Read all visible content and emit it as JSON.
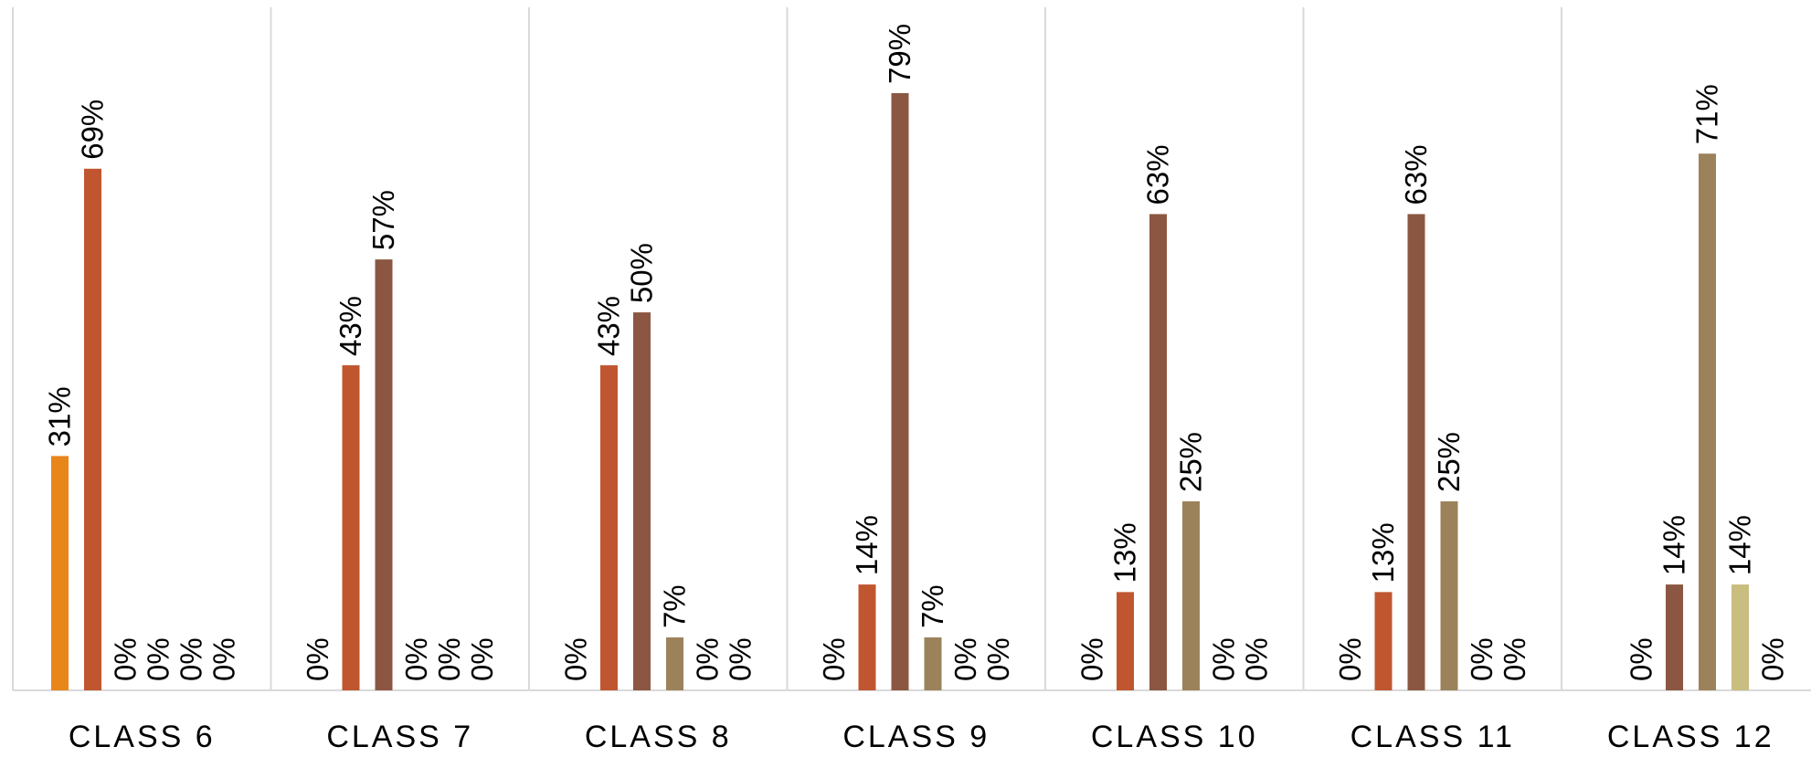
{
  "chart_data": {
    "type": "bar",
    "title": "",
    "xlabel": "",
    "ylabel": "",
    "ylim": [
      0,
      80
    ],
    "grid": "vertical category separators",
    "legend": "none",
    "categories": [
      "CLASS 6",
      "CLASS 7",
      "CLASS 8",
      "CLASS 9",
      "CLASS 10",
      "CLASS 11",
      "CLASS 12"
    ],
    "series": [
      {
        "color": "#E8861A",
        "values": [
          31,
          0,
          0,
          0,
          0,
          0,
          0
        ],
        "labels": [
          "31%",
          "",
          "",
          "",
          "",
          "",
          "0%"
        ]
      },
      {
        "color": "#C0562F",
        "values": [
          69,
          43,
          43,
          14,
          13,
          13,
          0
        ],
        "labels": [
          "69%",
          "43%",
          "43%",
          "14%",
          "13%",
          "13%",
          "0%"
        ]
      },
      {
        "color": "#8B5742",
        "values": [
          0,
          57,
          50,
          79,
          63,
          63,
          14
        ],
        "labels": [
          "0%",
          "57%",
          "50%",
          "79%",
          "63%",
          "63%",
          "14%"
        ]
      },
      {
        "color": "#9C825A",
        "values": [
          0,
          0,
          7,
          7,
          25,
          25,
          71
        ],
        "labels": [
          "0%",
          "0%",
          "7%",
          "7%",
          "25%",
          "25%",
          "71%"
        ]
      },
      {
        "color": "#C9BD7F",
        "values": [
          0,
          0,
          0,
          0,
          0,
          0,
          14
        ],
        "labels": [
          "0%",
          "0%",
          "0%",
          "0%",
          "0%",
          "0%",
          "14%"
        ]
      },
      {
        "color": "#D8CFA0",
        "values": [
          0,
          0,
          0,
          0,
          0,
          0,
          0
        ],
        "labels": [
          "0%",
          "0%",
          "0%",
          "0%",
          "0%",
          "0%",
          "0%"
        ]
      }
    ],
    "leading_zero_labels": [
      "",
      "0%",
      "0%",
      "0%",
      "0%",
      "0%",
      ""
    ]
  }
}
